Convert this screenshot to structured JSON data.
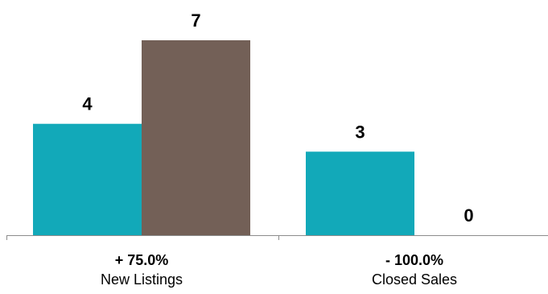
{
  "chart_data": {
    "type": "bar",
    "categories": [
      "New Listings",
      "Closed Sales"
    ],
    "category_changes": [
      "+ 75.0%",
      "- 100.0%"
    ],
    "series": [
      {
        "values": [
          4,
          3
        ]
      },
      {
        "values": [
          7,
          0
        ]
      }
    ],
    "ylim": [
      0,
      7
    ],
    "grid": false,
    "legend": "none",
    "colors": [
      "#12A9B9",
      "#736057"
    ]
  }
}
